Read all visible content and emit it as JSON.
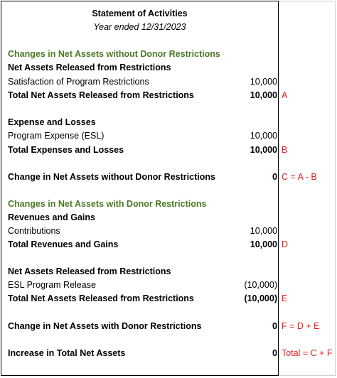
{
  "header": {
    "title": "Statement of Activities",
    "subtitle": "Year ended 12/31/2023"
  },
  "without": {
    "heading": "Changes in Net Assets without Donor Restrictions",
    "released_title": "Net Assets Released from Restrictions",
    "satisfaction": {
      "label": "Satisfaction of Program Restrictions",
      "value": "10,000"
    },
    "total_released": {
      "label": "Total Net Assets Released from Restrictions",
      "value": "10,000",
      "note": "A"
    },
    "expense_title": "Expense and Losses",
    "program_expense": {
      "label": "Program Expense (ESL)",
      "value": "10,000"
    },
    "total_expenses": {
      "label": "Total Expenses and Losses",
      "value": "10,000",
      "note": "B"
    },
    "change": {
      "label": "Change in Net Assets without Donor Restrictions",
      "value": "0",
      "note": "C = A - B"
    }
  },
  "with": {
    "heading": "Changes in Net Assets with Donor Restrictions",
    "revenues_title": "Revenues and Gains",
    "contributions": {
      "label": "Contributions",
      "value": "10,000"
    },
    "total_revenues": {
      "label": "Total Revenues and Gains",
      "value": "10,000",
      "note": "D"
    },
    "released_title": "Net Assets Released from Restrictions",
    "esl_release": {
      "label": "ESL Program Release",
      "value": "(10,000)"
    },
    "total_released": {
      "label": "Total Net Assets Released from Restrictions",
      "value": "(10,000)",
      "note": "E"
    },
    "change": {
      "label": "Change in Net Assets with Donor Restrictions",
      "value": "0",
      "note": "F = D + E"
    }
  },
  "total": {
    "label": "Increase in Total Net Assets",
    "value": "0",
    "note": "Total = C + F"
  },
  "colors": {
    "section_heading": "#4a7a25",
    "annotation": "#e02020"
  }
}
